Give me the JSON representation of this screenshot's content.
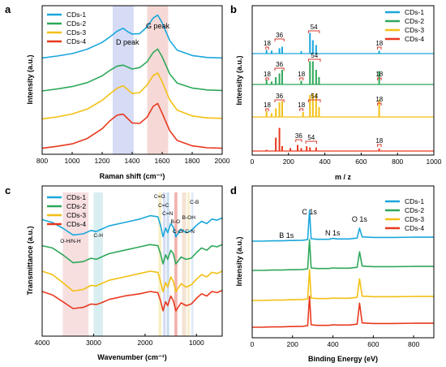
{
  "colors": {
    "CDs-1": "#1aa7dc",
    "CDs-2": "#2ea85a",
    "CDs-3": "#f2c014",
    "CDs-4": "#e8391f",
    "band_blue": "#d6dcf6",
    "band_red": "#f6d9d6"
  },
  "chart_data": [
    {
      "panel": "a",
      "type": "line",
      "xlabel": "Raman shift (cm⁻¹)",
      "ylabel": "Intensity (a.u.)",
      "xlim": [
        800,
        2000
      ],
      "xticks": [
        "800",
        "1000",
        "1200",
        "1400",
        "1600",
        "1800",
        "2000"
      ],
      "grid": false,
      "legend": "top-left",
      "annotations": [
        "D peak",
        "G peak"
      ],
      "bands": [
        {
          "label": "D peak",
          "x": [
            1270,
            1410
          ],
          "color": "band_blue"
        },
        {
          "label": "G peak",
          "x": [
            1500,
            1640
          ],
          "color": "band_red"
        }
      ],
      "x": [
        800,
        900,
        1000,
        1100,
        1200,
        1250,
        1300,
        1340,
        1370,
        1400,
        1450,
        1500,
        1540,
        1570,
        1600,
        1650,
        1700,
        1800,
        1900,
        2000
      ],
      "series": [
        {
          "name": "CDs-1",
          "values": [
            0.06,
            0.1,
            0.15,
            0.24,
            0.38,
            0.49,
            0.61,
            0.67,
            0.6,
            0.55,
            0.56,
            0.7,
            0.88,
            0.94,
            0.78,
            0.42,
            0.22,
            0.11,
            0.07,
            0.06
          ]
        },
        {
          "name": "CDs-2",
          "values": [
            0.05,
            0.09,
            0.14,
            0.22,
            0.36,
            0.47,
            0.56,
            0.58,
            0.54,
            0.5,
            0.53,
            0.65,
            0.84,
            0.91,
            0.75,
            0.4,
            0.21,
            0.11,
            0.07,
            0.06
          ]
        },
        {
          "name": "CDs-3",
          "values": [
            0.06,
            0.1,
            0.16,
            0.26,
            0.44,
            0.57,
            0.69,
            0.74,
            0.66,
            0.58,
            0.6,
            0.76,
            0.95,
            1.0,
            0.82,
            0.45,
            0.24,
            0.12,
            0.08,
            0.07
          ]
        },
        {
          "name": "CDs-4",
          "values": [
            0.04,
            0.08,
            0.13,
            0.24,
            0.44,
            0.6,
            0.72,
            0.74,
            0.65,
            0.56,
            0.55,
            0.68,
            0.9,
            0.96,
            0.76,
            0.4,
            0.2,
            0.09,
            0.05,
            0.04
          ]
        }
      ]
    },
    {
      "panel": "b",
      "type": "bar",
      "xlabel": "m / z",
      "ylabel": "Intensity (a.u.)",
      "xlim": [
        0,
        1000
      ],
      "xticks": [
        "0",
        "200",
        "400",
        "600",
        "800",
        "1000"
      ],
      "legend": "top-right",
      "annotations": [
        "18",
        "36",
        "54"
      ],
      "series": [
        {
          "name": "CDs-1",
          "peaks": [
            [
              79,
              0.15
            ],
            [
              107,
              0.12
            ],
            [
              150,
              0.22
            ],
            [
              165,
              0.28
            ],
            [
              270,
              0.1
            ],
            [
              318,
              0.85
            ],
            [
              334,
              0.55
            ],
            [
              352,
              0.35
            ],
            [
              699,
              0.12
            ]
          ]
        },
        {
          "name": "CDs-2",
          "peaks": [
            [
              79,
              0.2
            ],
            [
              107,
              0.12
            ],
            [
              130,
              0.3
            ],
            [
              150,
              0.45
            ],
            [
              165,
              0.6
            ],
            [
              270,
              0.15
            ],
            [
              318,
              0.95
            ],
            [
              334,
              0.95
            ],
            [
              352,
              0.6
            ],
            [
              368,
              0.3
            ],
            [
              699,
              0.55
            ]
          ]
        },
        {
          "name": "CDs-3",
          "peaks": [
            [
              79,
              0.25
            ],
            [
              107,
              0.15
            ],
            [
              130,
              0.35
            ],
            [
              150,
              0.6
            ],
            [
              165,
              0.65
            ],
            [
              280,
              0.2
            ],
            [
              318,
              0.9
            ],
            [
              334,
              0.95
            ],
            [
              352,
              0.95
            ],
            [
              368,
              0.4
            ],
            [
              699,
              0.7
            ]
          ]
        },
        {
          "name": "CDs-4",
          "peaks": [
            [
              79,
              0.05
            ],
            [
              130,
              0.55
            ],
            [
              150,
              0.95
            ],
            [
              165,
              0.2
            ],
            [
              210,
              0.12
            ],
            [
              250,
              0.25
            ],
            [
              270,
              0.12
            ],
            [
              300,
              0.2
            ],
            [
              318,
              0.15
            ],
            [
              352,
              0.15
            ],
            [
              699,
              0.1
            ]
          ]
        }
      ]
    },
    {
      "panel": "c",
      "type": "line",
      "xlabel": "Wavenumber (cm⁻¹)",
      "ylabel": "Transmittance (a.u.)",
      "xlim": [
        4000,
        500
      ],
      "xticks": [
        "4000",
        "3000",
        "2000",
        "1000"
      ],
      "legend": "top-left",
      "annotations": [
        "O-H/N-H",
        "C-H",
        "C=O",
        "C=C",
        "C=N",
        "B-O",
        "C-O/ C-N",
        "B-OH",
        "C-B"
      ],
      "bands": [
        {
          "label": "O-H/N-H",
          "x": [
            3600,
            3100
          ],
          "color": "#f7dfe0"
        },
        {
          "label": "C-H",
          "x": [
            3000,
            2820
          ],
          "color": "#d9eef0"
        },
        {
          "label": "C=O",
          "x": [
            1740,
            1680
          ],
          "color": "#f7f0c8"
        },
        {
          "label": "C=C",
          "x": [
            1650,
            1600
          ],
          "color": "#d6dcf6"
        },
        {
          "label": "C=N",
          "x": [
            1580,
            1530
          ],
          "color": "#c9ddef"
        },
        {
          "label": "B-O",
          "x": [
            1430,
            1370
          ],
          "color": "#f3b4ae"
        },
        {
          "label": "C-O/ C-N",
          "x": [
            1280,
            1200
          ],
          "color": "#f5e2d4"
        },
        {
          "label": "B-OH",
          "x": [
            1180,
            1130
          ],
          "color": "#f7efcf"
        },
        {
          "label": "C-B",
          "x": [
            1100,
            1060
          ],
          "color": "#dde9f6"
        }
      ],
      "x": [
        4000,
        3800,
        3600,
        3400,
        3200,
        3050,
        2950,
        2850,
        2700,
        2400,
        2100,
        1900,
        1750,
        1700,
        1650,
        1600,
        1560,
        1500,
        1450,
        1400,
        1300,
        1200,
        1100,
        1000,
        900,
        800,
        700,
        600,
        500
      ],
      "series": [
        {
          "name": "CDs-1",
          "values": [
            0.85,
            0.8,
            0.7,
            0.58,
            0.6,
            0.66,
            0.64,
            0.68,
            0.74,
            0.8,
            0.86,
            0.92,
            0.9,
            0.75,
            0.55,
            0.7,
            0.62,
            0.78,
            0.72,
            0.55,
            0.68,
            0.62,
            0.66,
            0.75,
            0.82,
            0.78,
            0.86,
            0.84,
            0.88
          ]
        },
        {
          "name": "CDs-2",
          "values": [
            0.82,
            0.78,
            0.66,
            0.52,
            0.54,
            0.6,
            0.58,
            0.62,
            0.68,
            0.74,
            0.8,
            0.84,
            0.82,
            0.68,
            0.5,
            0.66,
            0.58,
            0.74,
            0.68,
            0.5,
            0.62,
            0.58,
            0.6,
            0.7,
            0.78,
            0.74,
            0.82,
            0.8,
            0.84
          ]
        },
        {
          "name": "CDs-3",
          "values": [
            0.8,
            0.74,
            0.6,
            0.45,
            0.48,
            0.55,
            0.54,
            0.58,
            0.64,
            0.7,
            0.76,
            0.8,
            0.78,
            0.62,
            0.44,
            0.6,
            0.52,
            0.7,
            0.62,
            0.44,
            0.58,
            0.52,
            0.56,
            0.66,
            0.74,
            0.7,
            0.78,
            0.76,
            0.8
          ]
        },
        {
          "name": "CDs-4",
          "values": [
            0.8,
            0.74,
            0.62,
            0.5,
            0.52,
            0.58,
            0.57,
            0.6,
            0.66,
            0.72,
            0.76,
            0.8,
            0.78,
            0.64,
            0.46,
            0.62,
            0.55,
            0.72,
            0.64,
            0.46,
            0.6,
            0.55,
            0.58,
            0.68,
            0.76,
            0.72,
            0.8,
            0.78,
            0.82
          ]
        }
      ]
    },
    {
      "panel": "d",
      "type": "line",
      "xlabel": "Binding Energy (eV)",
      "ylabel": "Intensity (a.u.)",
      "xlim": [
        0,
        900
      ],
      "xticks": [
        "0",
        "200",
        "400",
        "600",
        "800"
      ],
      "legend": "top-right",
      "annotations": [
        "B 1s",
        "C 1s",
        "N 1s",
        "O 1s"
      ],
      "x": [
        0,
        50,
        100,
        150,
        185,
        200,
        250,
        275,
        284,
        292,
        320,
        380,
        399,
        420,
        480,
        520,
        532,
        545,
        600,
        700,
        800,
        900
      ],
      "series": [
        {
          "name": "CDs-1",
          "values": [
            0.0,
            0.0,
            0.01,
            0.01,
            0.02,
            0.02,
            0.03,
            0.05,
            1.0,
            0.08,
            0.06,
            0.06,
            0.09,
            0.07,
            0.07,
            0.1,
            0.42,
            0.14,
            0.12,
            0.12,
            0.13,
            0.13
          ]
        },
        {
          "name": "CDs-2",
          "values": [
            0.0,
            0.0,
            0.01,
            0.01,
            0.02,
            0.02,
            0.03,
            0.05,
            1.0,
            0.08,
            0.06,
            0.06,
            0.08,
            0.07,
            0.07,
            0.1,
            0.6,
            0.14,
            0.12,
            0.12,
            0.13,
            0.13
          ]
        },
        {
          "name": "CDs-3",
          "values": [
            0.0,
            0.0,
            0.01,
            0.01,
            0.02,
            0.02,
            0.03,
            0.05,
            1.0,
            0.08,
            0.06,
            0.06,
            0.08,
            0.07,
            0.07,
            0.1,
            0.7,
            0.14,
            0.12,
            0.12,
            0.13,
            0.13
          ]
        },
        {
          "name": "CDs-4",
          "values": [
            0.0,
            0.0,
            0.01,
            0.01,
            0.02,
            0.02,
            0.03,
            0.05,
            1.0,
            0.08,
            0.06,
            0.06,
            0.08,
            0.07,
            0.07,
            0.1,
            0.78,
            0.14,
            0.12,
            0.12,
            0.13,
            0.13
          ]
        }
      ]
    }
  ]
}
